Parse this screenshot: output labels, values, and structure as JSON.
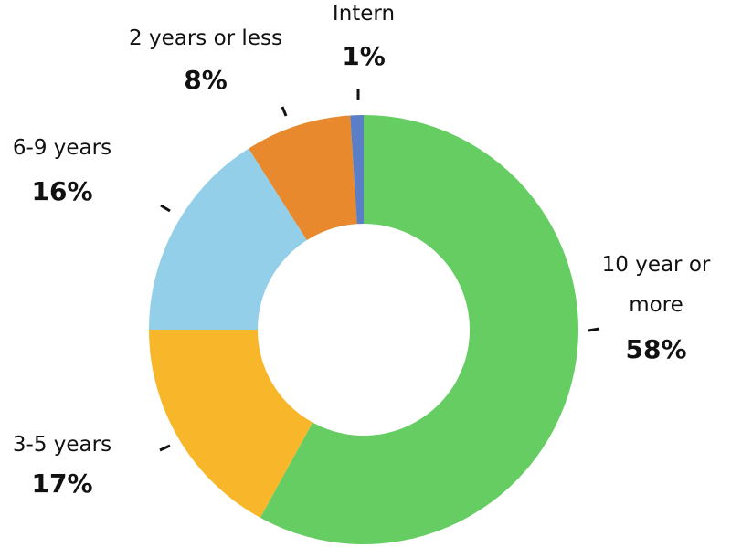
{
  "chart_data": {
    "type": "donut",
    "categories": [
      "10 year or more",
      "3-5 years",
      "6-9 years",
      "2 years or less",
      "Intern"
    ],
    "values": [
      58,
      17,
      16,
      8,
      1
    ],
    "value_labels": [
      "58%",
      "17%",
      "16%",
      "8%",
      "1%"
    ],
    "colors": [
      "#66cd63",
      "#f8b72a",
      "#93cfe8",
      "#e8892e",
      "#5a7fc6"
    ]
  }
}
